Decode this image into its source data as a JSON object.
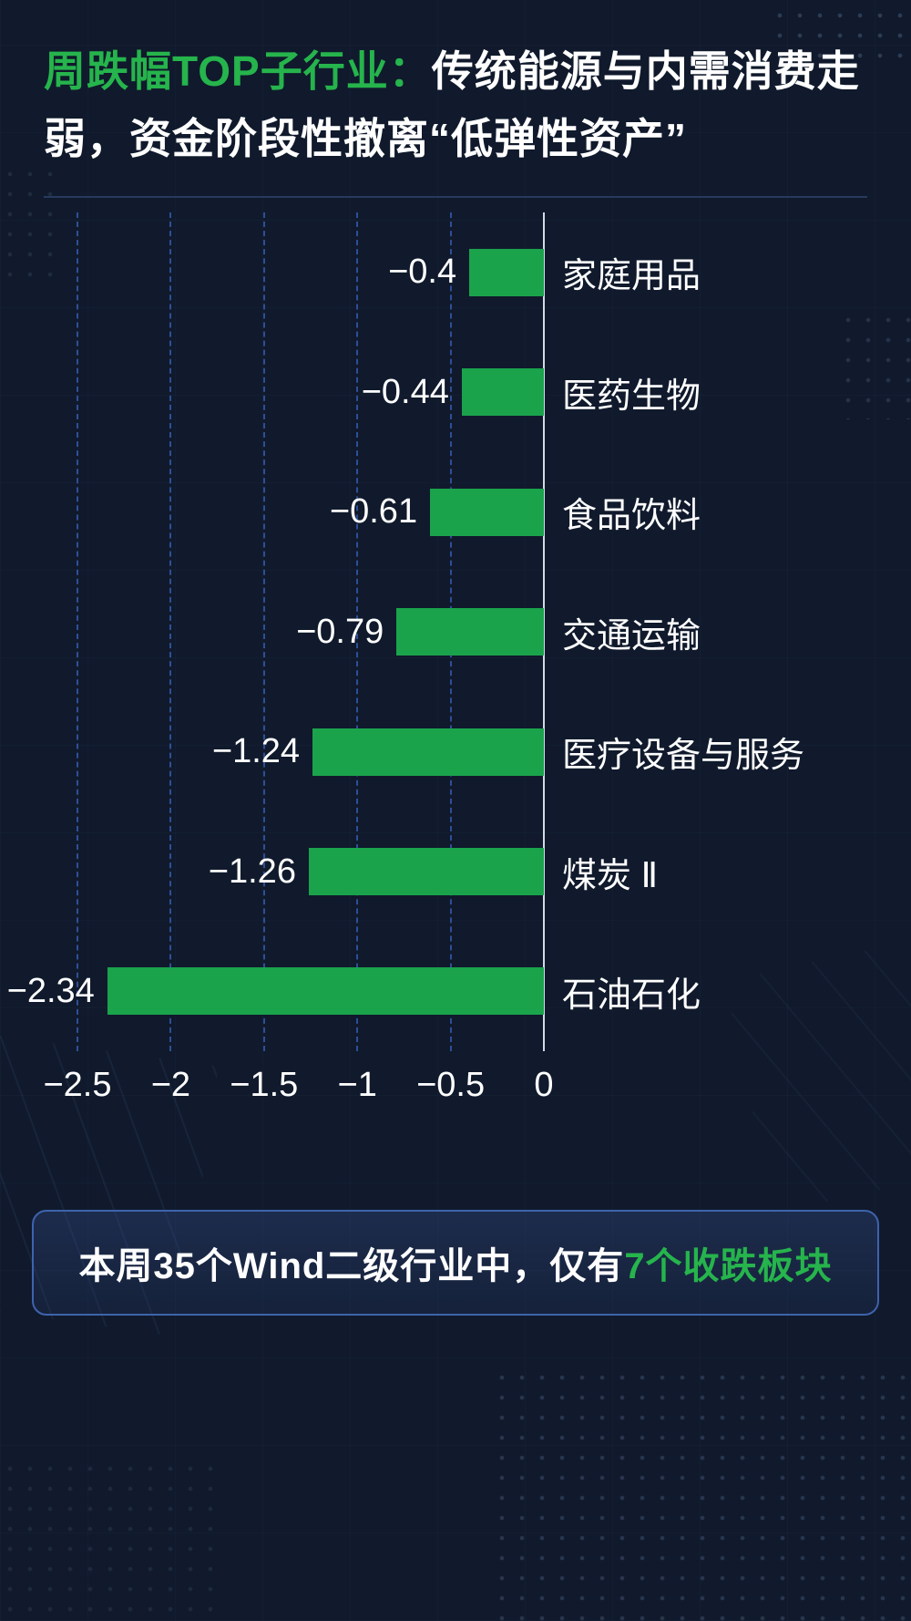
{
  "title": {
    "highlight": "周跌幅TOP子行业：",
    "rest": "传统能源与内需消费走弱，资金阶段性撤离“低弹性资产”"
  },
  "chart_data": {
    "type": "bar",
    "orientation": "horizontal",
    "title": "周跌幅TOP子行业",
    "categories": [
      "家庭用品",
      "医药生物",
      "食品饮料",
      "交通运输",
      "医疗设备与服务",
      "煤炭 Ⅱ",
      "石油石化"
    ],
    "values": [
      -0.4,
      -0.44,
      -0.61,
      -0.79,
      -1.24,
      -1.26,
      -2.34
    ],
    "value_labels": [
      "−0.4",
      "−0.44",
      "−0.61",
      "−0.79",
      "−1.24",
      "−1.26",
      "−2.34"
    ],
    "x_ticks": [
      "−2.5",
      "−2",
      "−1.5",
      "−1",
      "−0.5",
      "0"
    ],
    "x_tick_values": [
      -2.5,
      -2,
      -1.5,
      -1,
      -0.5,
      0
    ],
    "xlim": [
      -2.5,
      0
    ],
    "grid": "vertical-dashed",
    "legend": "none",
    "bar_color": "#1ba34c"
  },
  "footer": {
    "prefix": "本周35个Wind二级行业中，仅有",
    "highlight": "7个收跌板块"
  },
  "colors": {
    "background": "#101a2c",
    "accent_green": "#26b44c",
    "bar_green": "#1ba34c",
    "gridline_blue": "#2e4f96",
    "zero_line": "#d3dae6",
    "footer_border": "#3e63ad",
    "divider": "#263a5e",
    "text": "#ffffff"
  }
}
